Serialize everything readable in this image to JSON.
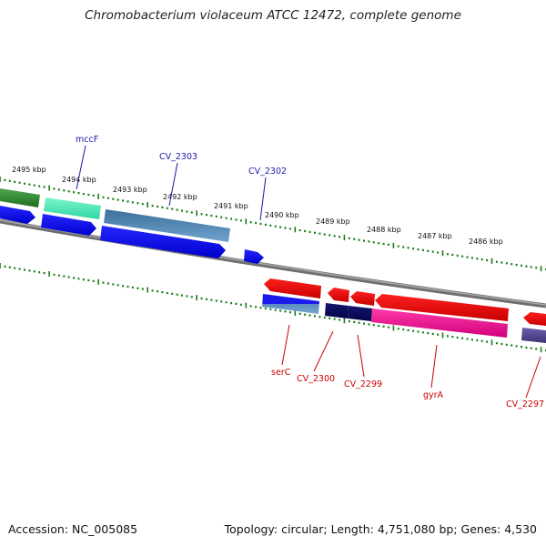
{
  "title": "Chromobacterium violaceum ATCC 12472, complete genome",
  "footer": {
    "accession": "Accession: NC_005085",
    "summary": "Topology: circular; Length: 4,751,080 bp; Genes: 4,530"
  },
  "ruler": {
    "tick_labels": [
      "2495 kbp",
      "2494 kbp",
      "2493 kbp",
      "2492 kbp",
      "2491 kbp",
      "2490 kbp",
      "2489 kbp",
      "2488 kbp",
      "2487 kbp",
      "2486 kbp"
    ],
    "color": "#1a7a1a"
  },
  "colors": {
    "forward_label": "#1a1aaa",
    "reverse_label": "#cc0000",
    "backbone": "#808080"
  },
  "forward_labels": [
    "mccF",
    "CV_2303",
    "CV_2302"
  ],
  "reverse_labels": [
    "serC",
    "CV_2300",
    "CV_2299",
    "gyrA",
    "CV_2297"
  ]
}
